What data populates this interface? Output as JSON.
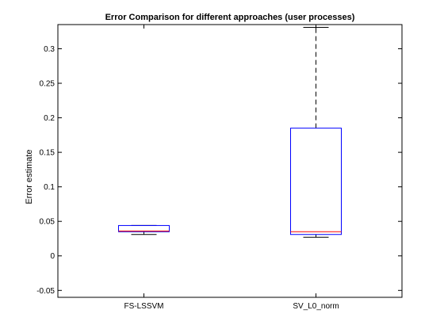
{
  "chart_data": {
    "type": "box",
    "title": "Error Comparison for different approaches (user processes)",
    "xlabel": "",
    "ylabel": "Error estimate",
    "ylim": [
      -0.06,
      0.335
    ],
    "grid": false,
    "y_ticks": [
      -0.05,
      0,
      0.05,
      0.1,
      0.15,
      0.2,
      0.25,
      0.3
    ],
    "y_tick_labels": [
      "-0.05",
      "0",
      "0.05",
      "0.1",
      "0.15",
      "0.2",
      "0.25",
      "0.3"
    ],
    "categories": [
      "FS-LSSVM",
      "SV_L0_norm"
    ],
    "boxes": [
      {
        "label": "FS-LSSVM",
        "whisker_low": 0.031,
        "q1": 0.035,
        "median": 0.036,
        "q3": 0.044,
        "whisker_high": 0.044
      },
      {
        "label": "SV_L0_norm",
        "whisker_low": 0.027,
        "q1": 0.031,
        "median": 0.035,
        "q3": 0.185,
        "whisker_high": 0.331
      }
    ],
    "colors": {
      "box": "#0000ff",
      "median": "#ff0000",
      "whisker": "#000000",
      "axes": "#000000"
    }
  }
}
